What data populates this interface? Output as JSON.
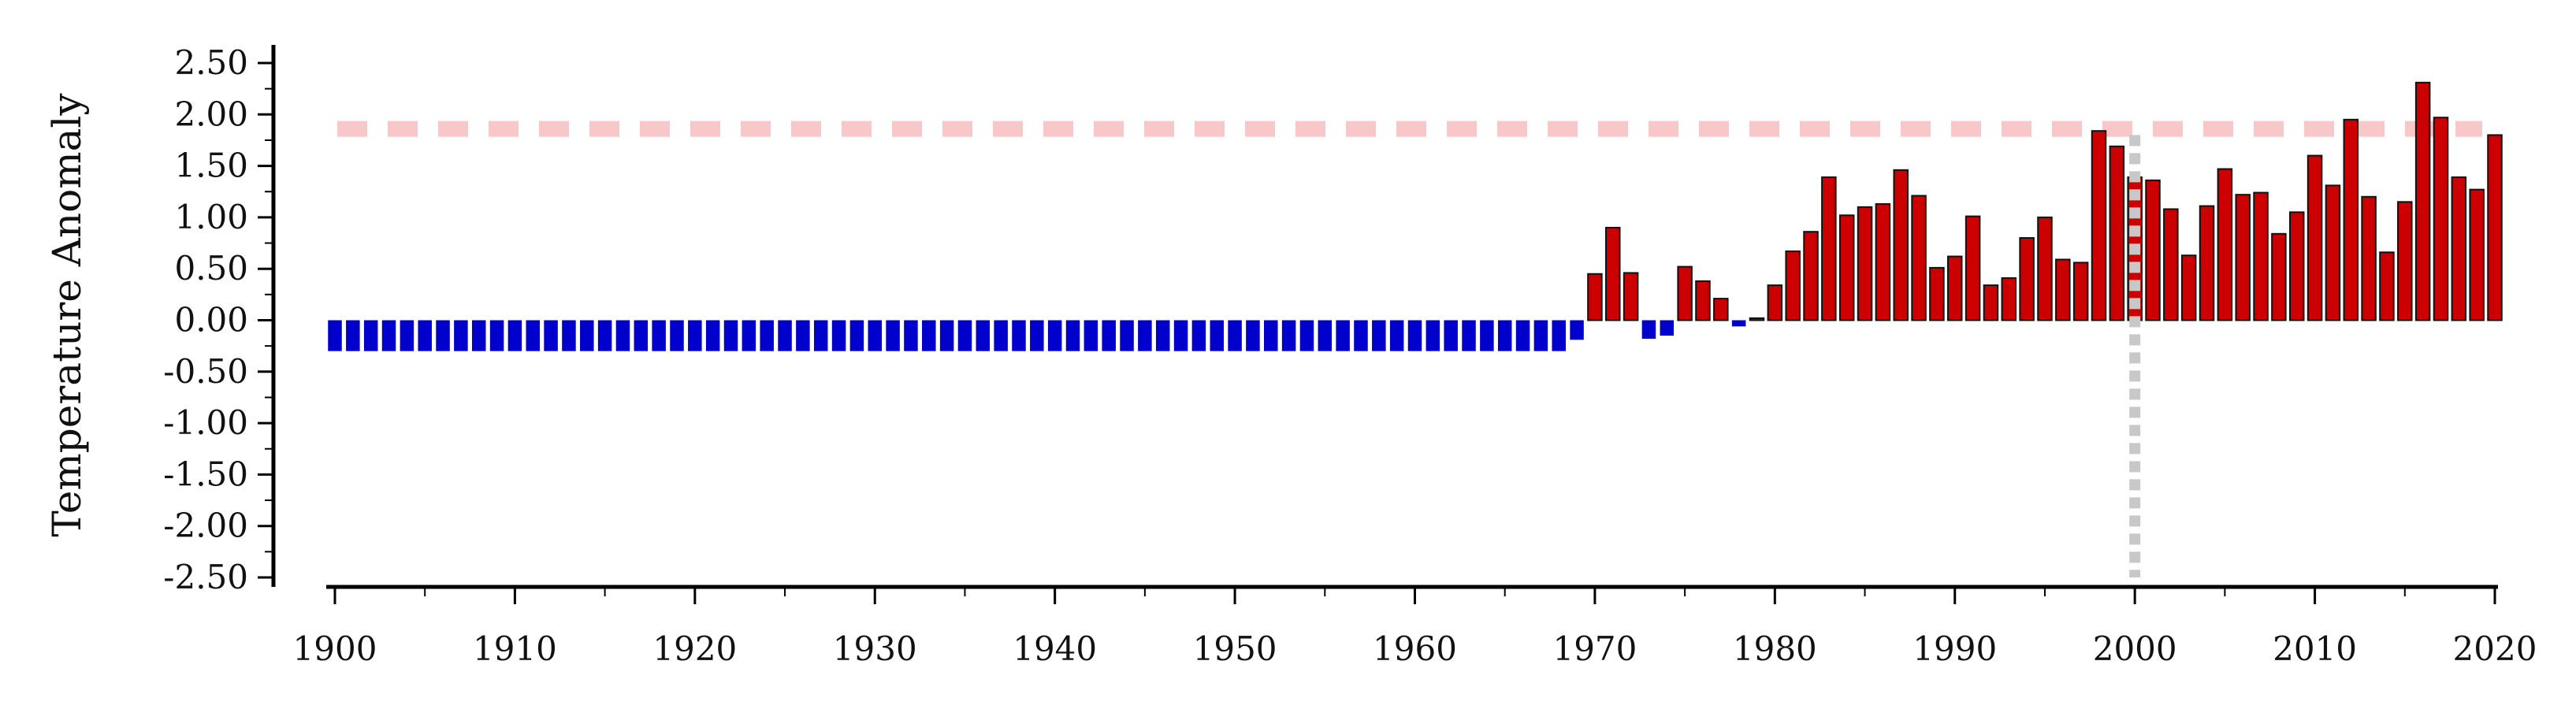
{
  "chart_data": {
    "type": "bar",
    "title": "",
    "xlabel": "",
    "ylabel": "Temperature Anomaly",
    "xlim": [
      1899.5,
      2020.5
    ],
    "ylim": [
      -2.6,
      2.65
    ],
    "x_ticks": [
      1900,
      1910,
      1920,
      1930,
      1940,
      1950,
      1960,
      1970,
      1980,
      1990,
      2000,
      2010,
      2020
    ],
    "x_tick_labels": [
      "1900",
      "1910",
      "1920",
      "1930",
      "1940",
      "1950",
      "1960",
      "1970",
      "1980",
      "1990",
      "2000",
      "2010",
      "2020"
    ],
    "y_ticks": [
      2.5,
      2.0,
      1.5,
      1.0,
      0.5,
      0.0,
      -0.5,
      -1.0,
      -1.5,
      -2.0,
      -2.5
    ],
    "y_tick_labels": [
      "2.50",
      "2.00",
      "1.50",
      "1.00",
      "0.50",
      "0.00",
      "-0.50",
      "-1.00",
      "-1.50",
      "-2.00",
      "-2.50"
    ],
    "grid": false,
    "legend": "none",
    "colors": {
      "positive": "#cc0000",
      "negative": "#0000cc",
      "threshold_line": "#f8c8c8",
      "reference_line": "#c8c8c8",
      "axis": "#000000"
    },
    "threshold_line": {
      "y": 1.86,
      "style": "dashed"
    },
    "reference_line": {
      "x": 2000,
      "style": "dotted",
      "y_from": -2.5,
      "y_to": 1.8
    },
    "x": [
      1900,
      1901,
      1902,
      1903,
      1904,
      1905,
      1906,
      1907,
      1908,
      1909,
      1910,
      1911,
      1912,
      1913,
      1914,
      1915,
      1916,
      1917,
      1918,
      1919,
      1920,
      1921,
      1922,
      1923,
      1924,
      1925,
      1926,
      1927,
      1928,
      1929,
      1930,
      1931,
      1932,
      1933,
      1934,
      1935,
      1936,
      1937,
      1938,
      1939,
      1940,
      1941,
      1942,
      1943,
      1944,
      1945,
      1946,
      1947,
      1948,
      1949,
      1950,
      1951,
      1952,
      1953,
      1954,
      1955,
      1956,
      1957,
      1958,
      1959,
      1960,
      1961,
      1962,
      1963,
      1964,
      1965,
      1966,
      1967,
      1968,
      1969,
      1970,
      1971,
      1972,
      1973,
      1974,
      1975,
      1976,
      1977,
      1978,
      1979,
      1980,
      1981,
      1982,
      1983,
      1984,
      1985,
      1986,
      1987,
      1988,
      1989,
      1990,
      1991,
      1992,
      1993,
      1994,
      1995,
      1996,
      1997,
      1998,
      1999,
      2000,
      2001,
      2002,
      2003,
      2004,
      2005,
      2006,
      2007,
      2008,
      2009,
      2010,
      2011,
      2012,
      2013,
      2014,
      2015,
      2016,
      2017,
      2018,
      2019,
      2020
    ],
    "values": [
      -0.3,
      -0.3,
      -0.3,
      -0.3,
      -0.3,
      -0.3,
      -0.3,
      -0.3,
      -0.3,
      -0.3,
      -0.3,
      -0.3,
      -0.3,
      -0.3,
      -0.3,
      -0.3,
      -0.3,
      -0.3,
      -0.3,
      -0.3,
      -0.3,
      -0.3,
      -0.3,
      -0.3,
      -0.3,
      -0.3,
      -0.3,
      -0.3,
      -0.3,
      -0.3,
      -0.3,
      -0.3,
      -0.3,
      -0.3,
      -0.3,
      -0.3,
      -0.3,
      -0.3,
      -0.3,
      -0.3,
      -0.3,
      -0.3,
      -0.3,
      -0.3,
      -0.3,
      -0.3,
      -0.3,
      -0.3,
      -0.3,
      -0.3,
      -0.3,
      -0.3,
      -0.3,
      -0.3,
      -0.3,
      -0.3,
      -0.3,
      -0.3,
      -0.3,
      -0.3,
      -0.3,
      -0.3,
      -0.3,
      -0.3,
      -0.3,
      -0.3,
      -0.3,
      -0.3,
      -0.3,
      -0.19,
      0.45,
      0.9,
      0.46,
      -0.18,
      -0.15,
      0.52,
      0.38,
      0.21,
      -0.06,
      0.02,
      0.34,
      0.67,
      0.86,
      1.39,
      1.02,
      1.1,
      1.13,
      1.46,
      1.21,
      0.51,
      0.62,
      1.01,
      0.34,
      0.41,
      0.8,
      1.0,
      0.59,
      0.56,
      1.84,
      1.69,
      1.39,
      1.36,
      1.08,
      0.63,
      1.11,
      1.47,
      1.22,
      1.24,
      0.84,
      1.05,
      1.6,
      1.31,
      1.95,
      1.2,
      0.66,
      1.15,
      2.31,
      1.97,
      1.39,
      1.27,
      1.8
    ]
  }
}
